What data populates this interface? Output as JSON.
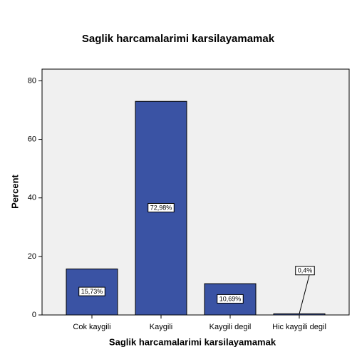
{
  "chart_data": {
    "type": "bar",
    "title": "Saglik harcamalarimi karsilayamamak",
    "x_label": "Saglik harcamalarimi karsilayamamak",
    "y_label": "Percent",
    "categories": [
      "Cok kaygili",
      "Kaygili",
      "Kaygili degil",
      "Hic kaygili degil"
    ],
    "values": [
      15.73,
      72.98,
      10.69,
      0.4
    ],
    "value_labels": [
      "15,73%",
      "72,98%",
      "10,69%",
      "0,4%"
    ],
    "color": "#3a53a4",
    "ylim": [
      0,
      84
    ],
    "yticks": [
      0,
      20,
      40,
      60,
      80
    ]
  }
}
